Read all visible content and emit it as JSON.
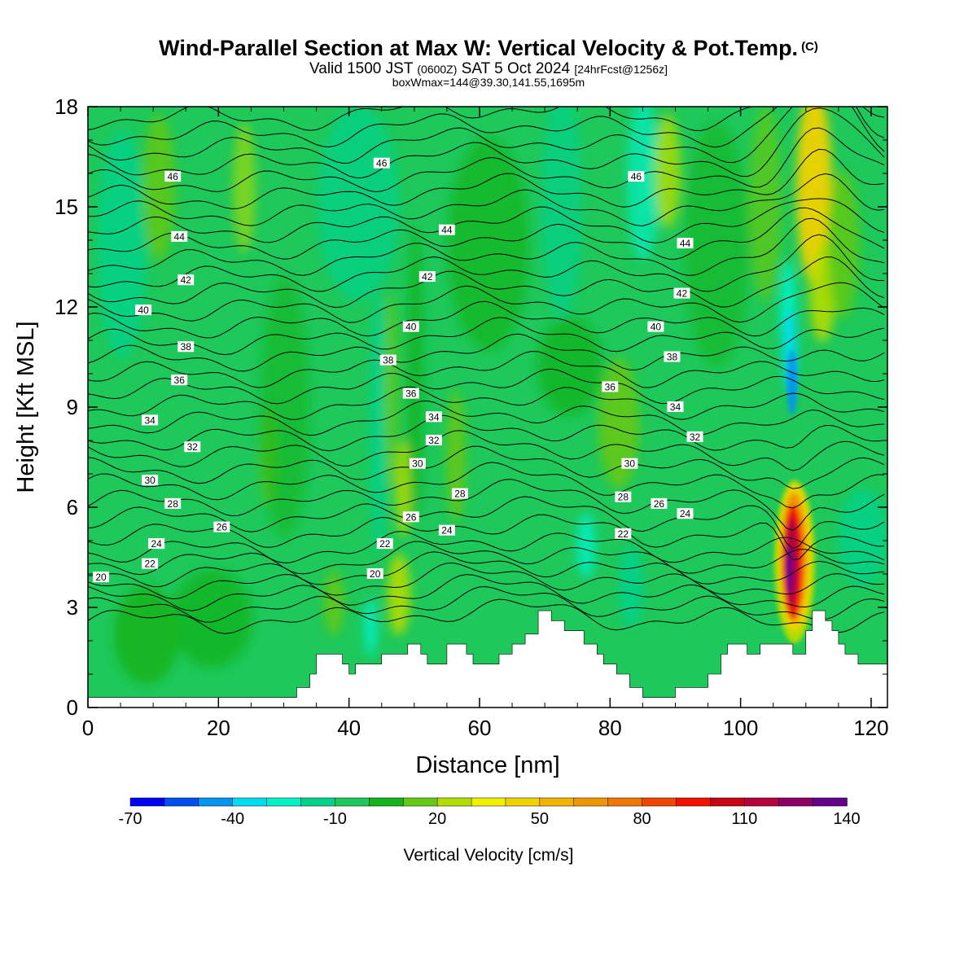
{
  "header": {
    "title": "Wind-Parallel Section at Max W: Vertical Velocity & Pot.Temp.",
    "copyright": "(C)",
    "valid_prefix": "Valid 1500 JST",
    "valid_zulu": "(0600Z)",
    "valid_date": "SAT 5 Oct 2024",
    "forecast": "[24hrFcst@1256z]",
    "box_info": "boxWmax=144@39.30,141.55,1695m"
  },
  "chart_data": {
    "type": "heatmap",
    "xlabel": "Distance [nm]",
    "ylabel": "Height [Kft MSL]",
    "xlim": [
      0,
      122.5
    ],
    "ylim": [
      0,
      18
    ],
    "x_ticks": [
      "0",
      "20",
      "40",
      "60",
      "80",
      "100",
      "120"
    ],
    "y_ticks": [
      "0",
      "3",
      "6",
      "9",
      "12",
      "15",
      "18"
    ],
    "colorbar": {
      "title": "Vertical Velocity [cm/s]",
      "labels": [
        "-70",
        "-40",
        "-10",
        "20",
        "50",
        "80",
        "110",
        "140"
      ],
      "levels": [
        -70,
        -60,
        -50,
        -40,
        -30,
        -20,
        -10,
        0,
        10,
        20,
        30,
        40,
        50,
        60,
        70,
        80,
        90,
        100,
        110,
        120,
        130,
        140
      ],
      "colors": [
        "#0000f0",
        "#0050f0",
        "#0096f0",
        "#00dcf0",
        "#00f0c8",
        "#00d28c",
        "#1ec85a",
        "#14b41e",
        "#64c814",
        "#b4dc00",
        "#f0f000",
        "#f0d200",
        "#f0b400",
        "#f09600",
        "#f07800",
        "#f04600",
        "#f01400",
        "#c80014",
        "#b4003c",
        "#8c0064",
        "#64008c"
      ]
    },
    "terrain_kft": [
      [
        0,
        0.3
      ],
      [
        32,
        0.3
      ],
      [
        32,
        0.6
      ],
      [
        34,
        0.6
      ],
      [
        34,
        1.0
      ],
      [
        35,
        1.0
      ],
      [
        35,
        1.6
      ],
      [
        39,
        1.6
      ],
      [
        39,
        1.3
      ],
      [
        40,
        1.3
      ],
      [
        40,
        1.0
      ],
      [
        41,
        1.0
      ],
      [
        41,
        1.3
      ],
      [
        45,
        1.3
      ],
      [
        45,
        1.6
      ],
      [
        49,
        1.6
      ],
      [
        49,
        1.9
      ],
      [
        51,
        1.9
      ],
      [
        51,
        1.6
      ],
      [
        52,
        1.6
      ],
      [
        52,
        1.3
      ],
      [
        55,
        1.3
      ],
      [
        55,
        1.9
      ],
      [
        58,
        1.9
      ],
      [
        58,
        1.6
      ],
      [
        59,
        1.6
      ],
      [
        59,
        1.3
      ],
      [
        63,
        1.3
      ],
      [
        63,
        1.6
      ],
      [
        65,
        1.6
      ],
      [
        65,
        1.9
      ],
      [
        67,
        1.9
      ],
      [
        67,
        2.2
      ],
      [
        69,
        2.2
      ],
      [
        69,
        2.9
      ],
      [
        71,
        2.9
      ],
      [
        71,
        2.6
      ],
      [
        73,
        2.6
      ],
      [
        73,
        2.3
      ],
      [
        76,
        2.3
      ],
      [
        76,
        1.9
      ],
      [
        78,
        1.9
      ],
      [
        78,
        1.6
      ],
      [
        79,
        1.6
      ],
      [
        79,
        1.3
      ],
      [
        81,
        1.3
      ],
      [
        81,
        1.0
      ],
      [
        83,
        1.0
      ],
      [
        83,
        0.6
      ],
      [
        85,
        0.6
      ],
      [
        85,
        0.3
      ],
      [
        90,
        0.3
      ],
      [
        90,
        0.6
      ],
      [
        95,
        0.6
      ],
      [
        95,
        1.0
      ],
      [
        97,
        1.0
      ],
      [
        97,
        1.6
      ],
      [
        98,
        1.6
      ],
      [
        98,
        1.9
      ],
      [
        101,
        1.9
      ],
      [
        101,
        1.6
      ],
      [
        103,
        1.6
      ],
      [
        103,
        1.9
      ],
      [
        108,
        1.9
      ],
      [
        108,
        1.6
      ],
      [
        110,
        1.6
      ],
      [
        110,
        2.3
      ],
      [
        111,
        2.3
      ],
      [
        111,
        2.9
      ],
      [
        113,
        2.9
      ],
      [
        113,
        2.6
      ],
      [
        114,
        2.6
      ],
      [
        114,
        2.3
      ],
      [
        115,
        2.3
      ],
      [
        115,
        1.9
      ],
      [
        116,
        1.9
      ],
      [
        116,
        1.6
      ],
      [
        118,
        1.6
      ],
      [
        118,
        1.3
      ],
      [
        122.5,
        1.3
      ]
    ],
    "theta_labels": [
      {
        "text": "46",
        "x": 13,
        "y": 15.9
      },
      {
        "text": "46",
        "x": 45,
        "y": 16.3
      },
      {
        "text": "46",
        "x": 84,
        "y": 15.9
      },
      {
        "text": "44",
        "x": 14,
        "y": 14.1
      },
      {
        "text": "44",
        "x": 55,
        "y": 14.3
      },
      {
        "text": "44",
        "x": 91.5,
        "y": 13.9
      },
      {
        "text": "42",
        "x": 15,
        "y": 12.8
      },
      {
        "text": "42",
        "x": 52,
        "y": 12.9
      },
      {
        "text": "42",
        "x": 91,
        "y": 12.4
      },
      {
        "text": "40",
        "x": 8.5,
        "y": 11.9
      },
      {
        "text": "40",
        "x": 49.5,
        "y": 11.4
      },
      {
        "text": "40",
        "x": 87,
        "y": 11.4
      },
      {
        "text": "38",
        "x": 15,
        "y": 10.8
      },
      {
        "text": "38",
        "x": 46,
        "y": 10.4
      },
      {
        "text": "38",
        "x": 89.5,
        "y": 10.5
      },
      {
        "text": "36",
        "x": 14,
        "y": 9.8
      },
      {
        "text": "36",
        "x": 49.5,
        "y": 9.4
      },
      {
        "text": "36",
        "x": 80,
        "y": 9.6
      },
      {
        "text": "34",
        "x": 9.5,
        "y": 8.6
      },
      {
        "text": "34",
        "x": 53,
        "y": 8.7
      },
      {
        "text": "34",
        "x": 90,
        "y": 9.0
      },
      {
        "text": "32",
        "x": 16,
        "y": 7.8
      },
      {
        "text": "32",
        "x": 53,
        "y": 8.0
      },
      {
        "text": "32",
        "x": 93,
        "y": 8.1
      },
      {
        "text": "30",
        "x": 9.5,
        "y": 6.8
      },
      {
        "text": "30",
        "x": 50.5,
        "y": 7.3
      },
      {
        "text": "30",
        "x": 83,
        "y": 7.3
      },
      {
        "text": "28",
        "x": 13,
        "y": 6.1
      },
      {
        "text": "28",
        "x": 57,
        "y": 6.4
      },
      {
        "text": "28",
        "x": 82,
        "y": 6.3
      },
      {
        "text": "26",
        "x": 87.5,
        "y": 6.1
      },
      {
        "text": "26",
        "x": 20.5,
        "y": 5.4
      },
      {
        "text": "26",
        "x": 49.5,
        "y": 5.7
      },
      {
        "text": "24",
        "x": 91.5,
        "y": 5.8
      },
      {
        "text": "24",
        "x": 10.5,
        "y": 4.9
      },
      {
        "text": "24",
        "x": 55,
        "y": 5.3
      },
      {
        "text": "22",
        "x": 82,
        "y": 5.2
      },
      {
        "text": "22",
        "x": 9.5,
        "y": 4.3
      },
      {
        "text": "22",
        "x": 45.5,
        "y": 4.9
      },
      {
        "text": "20",
        "x": 2,
        "y": 3.9
      },
      {
        "text": "20",
        "x": 44,
        "y": 4.0
      }
    ]
  }
}
